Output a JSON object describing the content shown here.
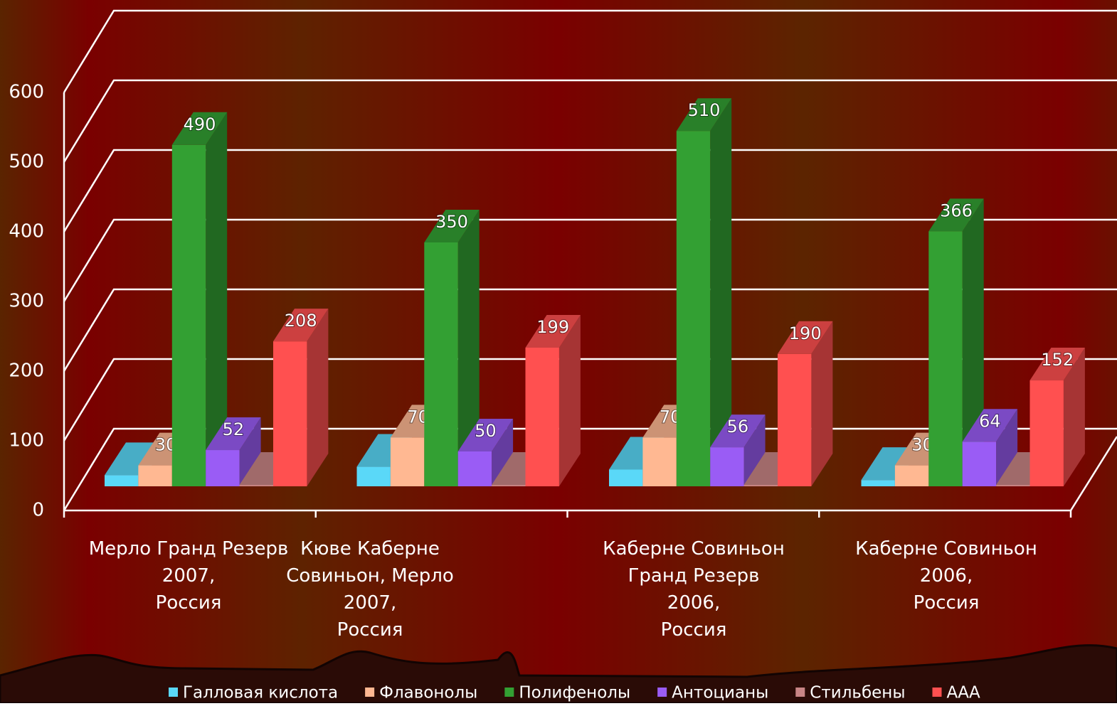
{
  "chart_data": {
    "type": "bar3d",
    "categories": [
      "Мерло Гранд Резерв\n2007,\nРоссия",
      "Кюве Каберне\nСовиньон, Мерло\n2007,\nРоссия",
      "Каберне Совиньон\nГранд Резерв\n2006,\nРоссия",
      "Каберне Совиньон\n2006,\nРоссия"
    ],
    "series": [
      {
        "name": "Галловая кислота",
        "color": "#5ad8f8",
        "values": [
          16,
          28,
          24,
          9
        ],
        "data_labels": false
      },
      {
        "name": "Флавонолы",
        "color": "#ffb892",
        "values": [
          30,
          70,
          70,
          30
        ],
        "data_labels": true
      },
      {
        "name": "Полифенолы",
        "color": "#33a033",
        "values": [
          490,
          350,
          510,
          366
        ],
        "data_labels": true
      },
      {
        "name": "Антоцианы",
        "color": "#9a5cf5",
        "values": [
          52,
          50,
          56,
          64
        ],
        "data_labels": true
      },
      {
        "name": "Стильбены",
        "color": "#c88585",
        "values": [
          2,
          2,
          2,
          2
        ],
        "data_labels": false
      },
      {
        "name": "ААА",
        "color": "#ff5050",
        "values": [
          208,
          199,
          190,
          152
        ],
        "data_labels": true
      }
    ],
    "ylim": [
      0,
      600
    ],
    "yticks": [
      0,
      100,
      200,
      300,
      400,
      500,
      600
    ],
    "grid": true,
    "legend": "bottom"
  }
}
